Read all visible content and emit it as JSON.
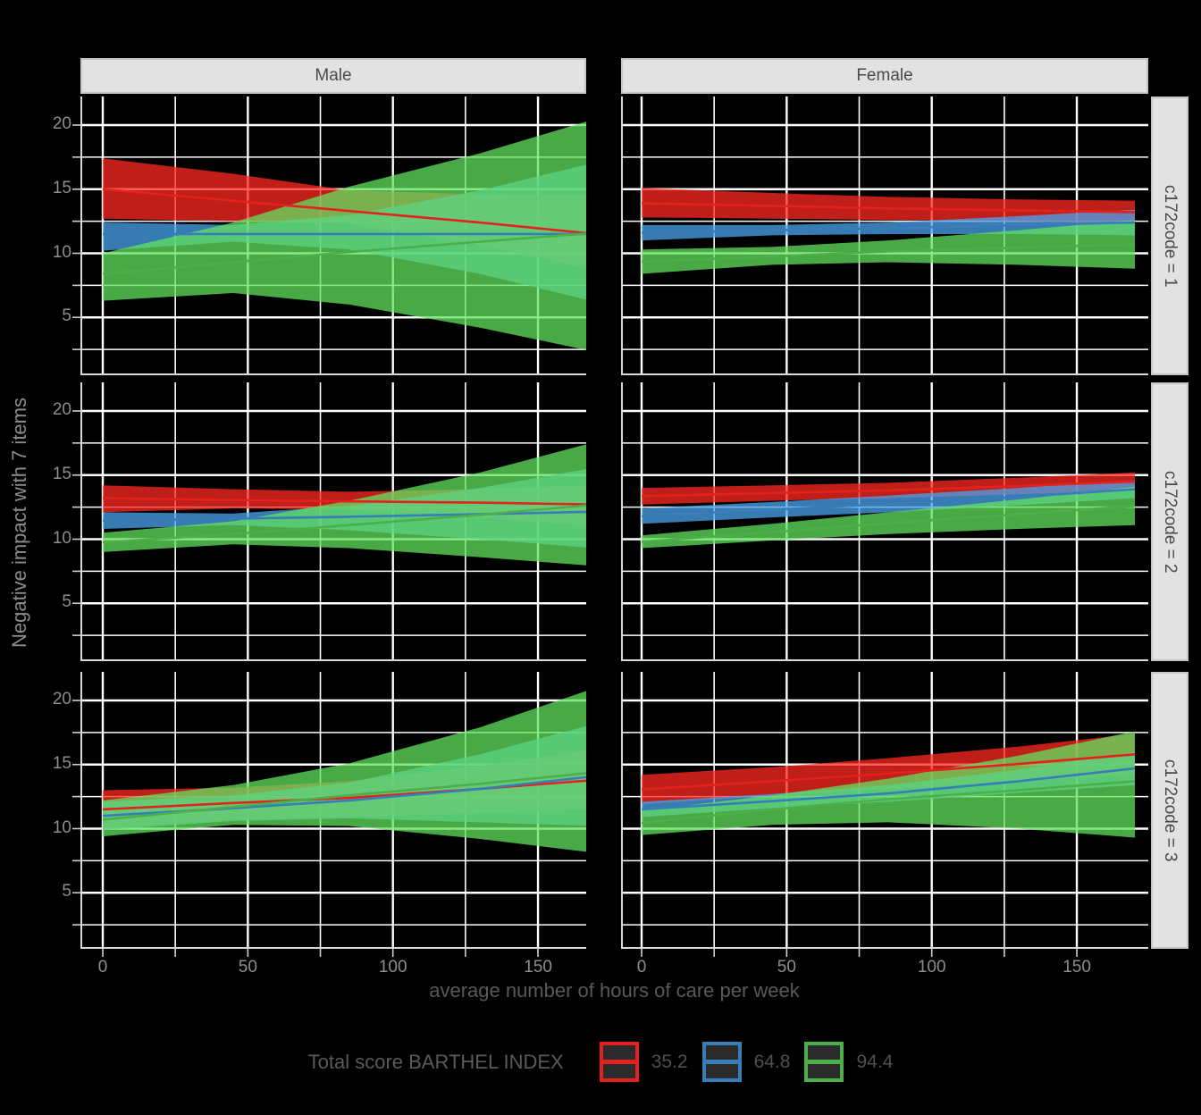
{
  "chart_data": {
    "type": "area",
    "description": "Faceted ribbon (confidence band) + trend line plot, predicted values by hours of care, sex and c172code",
    "xlabel": "average number of hours of care per week",
    "ylabel": "Negative impact with 7 items",
    "legend_title": "Total score BARTHEL INDEX",
    "facet_cols": [
      "Male",
      "Female"
    ],
    "facet_rows": [
      "c172code = 1",
      "c172code = 2",
      "c172code = 3"
    ],
    "x_tick_labels": [
      "0",
      "50",
      "100",
      "150"
    ],
    "y_tick_labels": [
      "20",
      "15",
      "10",
      "5"
    ],
    "x_ticks": [
      0,
      50,
      100,
      150
    ],
    "y_ticks": [
      5,
      10,
      15,
      20
    ],
    "xlim": [
      -8,
      174
    ],
    "ylim": [
      0.5,
      22
    ],
    "grid": "white major and minor gridlines on dark panel",
    "legend_position": "bottom",
    "panel_background": "#000000",
    "gridline_color": "#FFFFFF",
    "axis_line_color": "#D9D9D9",
    "series": [
      {
        "label": "35.2",
        "line_color": "#E4211C",
        "fill_color": "#FF2822"
      },
      {
        "label": "64.8",
        "line_color": "#377EB8",
        "fill_color": "#4AA4EE"
      },
      {
        "label": "94.4",
        "line_color": "#4DAF4A",
        "fill_color": "#63E25F"
      }
    ],
    "x": [
      0,
      45,
      85,
      130,
      170
    ],
    "panels": [
      {
        "facet_col": "Male",
        "facet_row": "c172code = 1",
        "series": [
          {
            "label": "35.2",
            "lower": [
              12.7,
              12.5,
              12.3,
              10.6,
              8.7
            ],
            "center": [
              15.0,
              14.1,
              13.3,
              12.4,
              11.5
            ],
            "upper": [
              17.4,
              16.2,
              14.9,
              14.6,
              14.5
            ]
          },
          {
            "label": "64.8",
            "lower": [
              10.2,
              10.9,
              10.3,
              8.4,
              6.2
            ],
            "center": [
              11.5,
              11.5,
              11.5,
              11.5,
              11.5
            ],
            "upper": [
              12.4,
              12.2,
              13.0,
              14.9,
              17.1
            ]
          },
          {
            "label": "94.4",
            "lower": [
              6.3,
              6.9,
              6.0,
              4.2,
              2.3
            ],
            "center": [
              8.4,
              9.3,
              10.1,
              10.9,
              11.6
            ],
            "upper": [
              10.0,
              12.4,
              15.2,
              17.8,
              20.5
            ]
          }
        ]
      },
      {
        "facet_col": "Female",
        "facet_row": "c172code = 1",
        "series": [
          {
            "label": "35.2",
            "lower": [
              12.8,
              12.7,
              12.6,
              12.5,
              12.3
            ],
            "center": [
              13.9,
              13.7,
              13.5,
              13.35,
              13.2
            ],
            "upper": [
              15.1,
              14.7,
              14.4,
              14.2,
              14.1
            ]
          },
          {
            "label": "64.8",
            "lower": [
              11.0,
              11.4,
              11.5,
              11.5,
              11.4
            ],
            "center": [
              11.6,
              11.8,
              11.95,
              12.2,
              12.4
            ],
            "upper": [
              12.2,
              12.2,
              12.4,
              12.9,
              13.4
            ]
          },
          {
            "label": "94.4",
            "lower": [
              8.4,
              9.1,
              9.3,
              9.1,
              8.8
            ],
            "center": [
              9.35,
              9.75,
              10.15,
              10.45,
              10.7
            ],
            "upper": [
              10.3,
              10.5,
              11.0,
              11.8,
              12.6
            ]
          }
        ]
      },
      {
        "facet_col": "Male",
        "facet_row": "c172code = 2",
        "series": [
          {
            "label": "35.2",
            "lower": [
              12.1,
              12.4,
              12.3,
              11.7,
              11.0
            ],
            "center": [
              13.2,
              13.05,
              12.95,
              12.85,
              12.7
            ],
            "upper": [
              14.2,
              13.9,
              13.7,
              13.9,
              14.2
            ]
          },
          {
            "label": "64.8",
            "lower": [
              10.8,
              11.1,
              10.7,
              10.0,
              9.3
            ],
            "center": [
              11.45,
              11.6,
              11.75,
              11.95,
              12.15
            ],
            "upper": [
              12.1,
              12.0,
              12.6,
              14.0,
              15.6
            ]
          },
          {
            "label": "94.4",
            "lower": [
              9.0,
              9.6,
              9.3,
              8.6,
              7.9
            ],
            "center": [
              9.75,
              10.4,
              11.1,
              11.9,
              12.7
            ],
            "upper": [
              10.5,
              11.4,
              13.0,
              15.2,
              17.6
            ]
          }
        ]
      },
      {
        "facet_col": "Female",
        "facet_row": "c172code = 2",
        "series": [
          {
            "label": "35.2",
            "lower": [
              12.7,
              13.0,
              13.2,
              13.5,
              13.8
            ],
            "center": [
              13.35,
              13.6,
              13.8,
              14.15,
              14.5
            ],
            "upper": [
              14.0,
              14.2,
              14.4,
              14.8,
              15.2
            ]
          },
          {
            "label": "64.8",
            "lower": [
              11.2,
              11.7,
              12.1,
              12.65,
              13.2
            ],
            "center": [
              11.8,
              12.3,
              12.75,
              13.3,
              13.9
            ],
            "upper": [
              12.4,
              12.9,
              13.4,
              14.0,
              14.6
            ]
          },
          {
            "label": "94.4",
            "lower": [
              9.3,
              9.9,
              10.4,
              10.8,
              11.1
            ],
            "center": [
              9.8,
              10.55,
              11.25,
              11.95,
              12.6
            ],
            "upper": [
              10.3,
              11.2,
              12.1,
              13.1,
              14.1
            ]
          }
        ]
      },
      {
        "facet_col": "Male",
        "facet_row": "c172code = 3",
        "series": [
          {
            "label": "35.2",
            "lower": [
              10.0,
              10.7,
              10.9,
              11.2,
              11.5
            ],
            "center": [
              11.5,
              12.0,
              12.4,
              13.1,
              13.8
            ],
            "upper": [
              13.0,
              13.2,
              13.7,
              14.9,
              16.2
            ]
          },
          {
            "label": "64.8",
            "lower": [
              9.9,
              10.6,
              10.8,
              10.5,
              10.2
            ],
            "center": [
              11.0,
              11.6,
              12.2,
              13.1,
              14.1
            ],
            "upper": [
              12.1,
              12.6,
              13.6,
              15.8,
              18.2
            ]
          },
          {
            "label": "94.4",
            "lower": [
              9.4,
              10.3,
              10.2,
              9.2,
              8.1
            ],
            "center": [
              10.7,
              11.7,
              12.6,
              13.5,
              14.4
            ],
            "upper": [
              12.2,
              13.4,
              15.1,
              17.9,
              21.0
            ]
          }
        ]
      },
      {
        "facet_col": "Female",
        "facet_row": "c172code = 3",
        "series": [
          {
            "label": "35.2",
            "lower": [
              11.9,
              12.6,
              13.1,
              13.7,
              14.2
            ],
            "center": [
              13.05,
              13.7,
              14.3,
              15.05,
              15.8
            ],
            "upper": [
              14.2,
              14.8,
              15.5,
              16.4,
              17.4
            ]
          },
          {
            "label": "64.8",
            "lower": [
              10.9,
              11.6,
              12.1,
              12.8,
              13.4
            ],
            "center": [
              11.5,
              12.15,
              12.75,
              13.7,
              14.7
            ],
            "upper": [
              12.1,
              12.7,
              13.4,
              14.6,
              16.0
            ]
          },
          {
            "label": "94.4",
            "lower": [
              9.5,
              10.3,
              10.5,
              10.0,
              9.3
            ],
            "center": [
              10.45,
              11.5,
              12.3,
              13.0,
              13.7
            ],
            "upper": [
              11.4,
              12.6,
              13.9,
              15.7,
              17.6
            ]
          }
        ]
      }
    ]
  }
}
